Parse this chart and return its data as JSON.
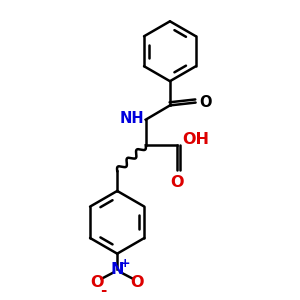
{
  "line_color": "#000000",
  "blue_color": "#0000dd",
  "red_color": "#dd0000",
  "line_width": 1.8,
  "font_size": 10.5,
  "fig_size": [
    3.0,
    3.0
  ],
  "dpi": 100,
  "xlim": [
    0,
    10
  ],
  "ylim": [
    0,
    10
  ]
}
